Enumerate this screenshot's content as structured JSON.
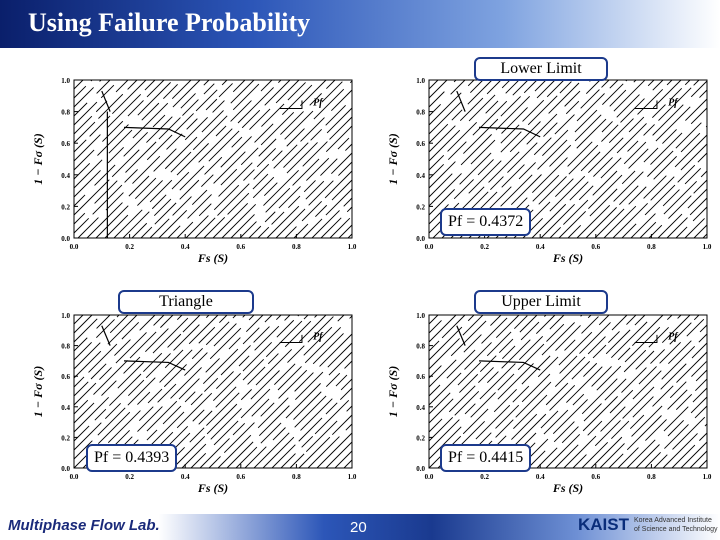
{
  "slide": {
    "title": "Using Failure Probability",
    "page_number": "20",
    "lab_name": "Multiphase Flow Lab.",
    "institute_logo": "KAIST",
    "institute_name": "Korea Advanced Institute of Science and Technology"
  },
  "panels": [
    {
      "label": "",
      "pf_text": ""
    },
    {
      "label": "Lower Limit",
      "pf_text": "Pf = 0.4372"
    },
    {
      "label": "Triangle",
      "pf_text": "Pf = 0.4393"
    },
    {
      "label": "Upper Limit",
      "pf_text": "Pf = 0.4415"
    }
  ],
  "chart_data": [
    {
      "type": "scatter",
      "xlabel": "Fs (S)",
      "ylabel": "1 − Fσ (S)",
      "xlim": [
        0,
        1.0
      ],
      "ylim": [
        0,
        1.0
      ],
      "xticks": [
        "0.0",
        "0.2",
        "0.4",
        "0.6",
        "0.8",
        "1.0"
      ],
      "yticks": [
        "0.0",
        "0.2",
        "0.4",
        "0.6",
        "0.8",
        "1.0"
      ],
      "annotation": "Pf"
    },
    {
      "type": "scatter",
      "xlabel": "Fs (S)",
      "ylabel": "1 − Fσ (S)",
      "xlim": [
        0,
        1.0
      ],
      "ylim": [
        0,
        1.0
      ],
      "xticks": [
        "0.0",
        "0.2",
        "0.4",
        "0.6",
        "0.8",
        "1.0"
      ],
      "yticks": [
        "0.0",
        "0.2",
        "0.4",
        "0.6",
        "0.8",
        "1.0"
      ],
      "annotation": "Pf",
      "pf": 0.4372
    },
    {
      "type": "scatter",
      "xlabel": "Fs (S)",
      "ylabel": "1 − Fσ (S)",
      "xlim": [
        0,
        1.0
      ],
      "ylim": [
        0,
        1.0
      ],
      "xticks": [
        "0.0",
        "0.2",
        "0.4",
        "0.6",
        "0.8",
        "1.0"
      ],
      "yticks": [
        "0.0",
        "0.2",
        "0.4",
        "0.6",
        "0.8",
        "1.0"
      ],
      "annotation": "Pf",
      "pf": 0.4393
    },
    {
      "type": "scatter",
      "xlabel": "Fs (S)",
      "ylabel": "1 − Fσ (S)",
      "xlim": [
        0,
        1.0
      ],
      "ylim": [
        0,
        1.0
      ],
      "xticks": [
        "0.0",
        "0.2",
        "0.4",
        "0.6",
        "0.8",
        "1.0"
      ],
      "yticks": [
        "0.0",
        "0.2",
        "0.4",
        "0.6",
        "0.8",
        "1.0"
      ],
      "annotation": "Pf",
      "pf": 0.4415
    }
  ]
}
